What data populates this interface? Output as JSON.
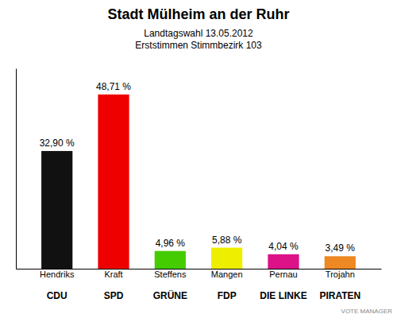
{
  "chart_data": {
    "type": "bar",
    "title": "Stadt Mülheim an der Ruhr",
    "subtitle": [
      "Landtagswahl 13.05.2012",
      "Erststimmen Stimmbezirk 103"
    ],
    "categories": [
      "Hendriks",
      "Kraft",
      "Steffens",
      "Mangen",
      "Pernau",
      "Trojahn"
    ],
    "parties": [
      "CDU",
      "SPD",
      "GRÜNE",
      "FDP",
      "DIE LINKE",
      "PIRATEN"
    ],
    "values": [
      32.9,
      48.71,
      4.96,
      5.88,
      4.04,
      3.49
    ],
    "value_labels": [
      "32,90 %",
      "48,71 %",
      "4,96 %",
      "5,88 %",
      "4,04 %",
      "3,49 %"
    ],
    "colors": [
      "#111111",
      "#ee0000",
      "#44cc00",
      "#eeee00",
      "#dd1188",
      "#ee8822"
    ],
    "ylim": [
      0,
      56
    ],
    "data_labels": true,
    "tick_labels": "x",
    "grid": false,
    "annotations": [
      "VOTE MANAGER"
    ]
  }
}
